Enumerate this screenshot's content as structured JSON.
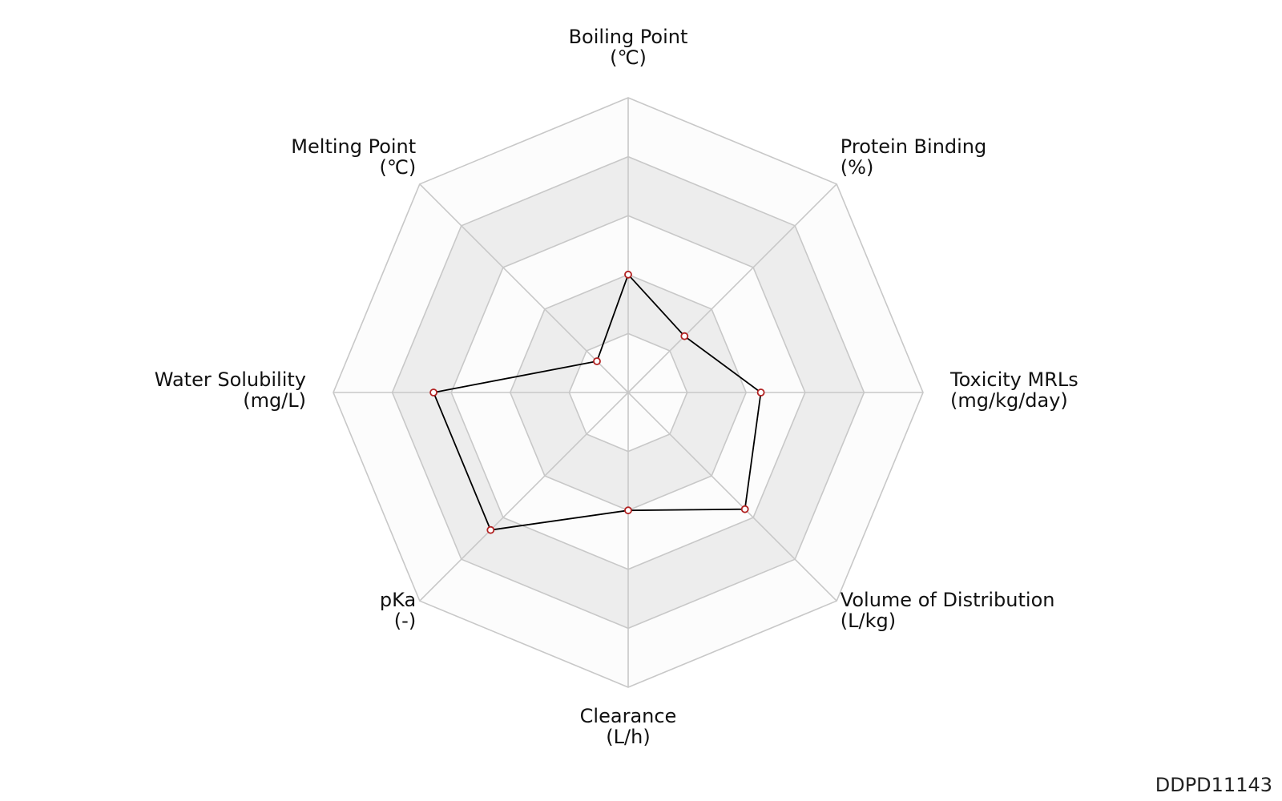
{
  "chart_data": {
    "type": "radar",
    "title": "",
    "axes": [
      {
        "name": "Boiling Point",
        "unit": "(℃)"
      },
      {
        "name": "Protein Binding",
        "unit": "(%)"
      },
      {
        "name": "Toxicity MRLs",
        "unit": "(mg/kg/day)"
      },
      {
        "name": "Volume of Distribution",
        "unit": "(L/kg)"
      },
      {
        "name": "Clearance",
        "unit": "(L/h)"
      },
      {
        "name": "pKa",
        "unit": "(-)"
      },
      {
        "name": "Water Solubility",
        "unit": "(mg/L)"
      },
      {
        "name": "Melting Point",
        "unit": "(℃)"
      }
    ],
    "rings": 5,
    "normalized_values": [
      0.4,
      0.27,
      0.45,
      0.56,
      0.4,
      0.66,
      0.66,
      0.15
    ],
    "colors": {
      "line": "#000000",
      "marker_edge": "#b22222",
      "marker_fill": "#ffffff",
      "grid": "#c8c8c8",
      "band_shaded": "#ededed",
      "band_light": "#fcfcfc"
    }
  },
  "corner_id": "DDPD11143"
}
